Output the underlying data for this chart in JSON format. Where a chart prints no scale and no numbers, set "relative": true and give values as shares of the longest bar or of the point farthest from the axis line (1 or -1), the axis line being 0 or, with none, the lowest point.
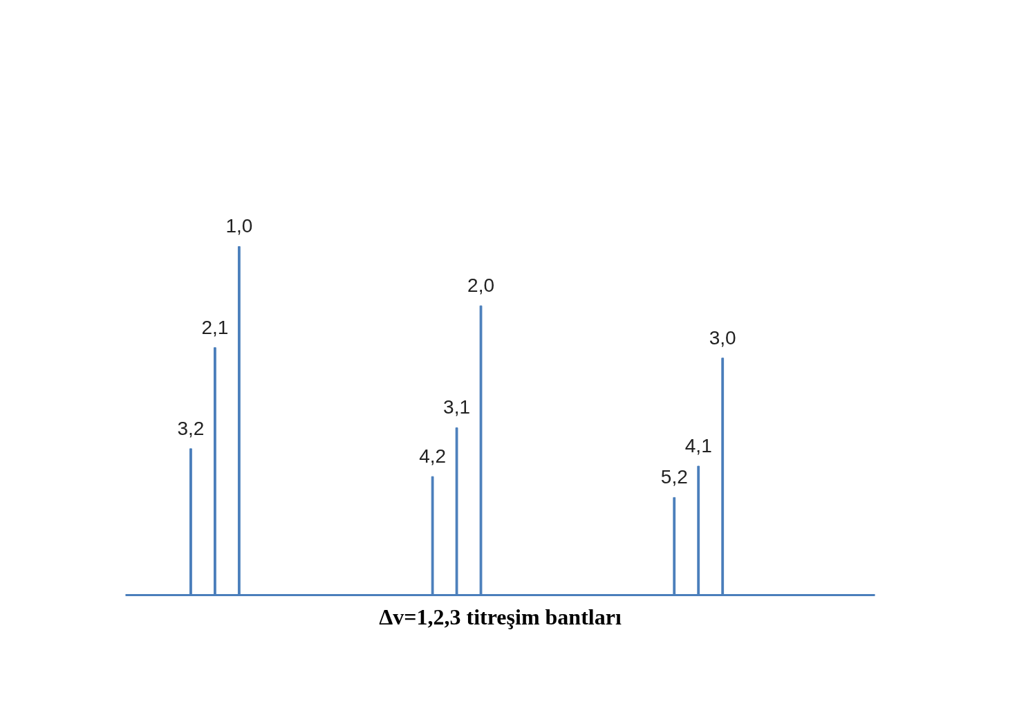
{
  "chart_data": {
    "type": "bar",
    "relative": true,
    "title": "Δv=1,2,3 titreşim bantları",
    "categories": [
      null,
      null,
      null
    ],
    "series": [
      {
        "color": "#4a7ebb",
        "values": [
          0.42,
          0.34,
          0.28
        ]
      },
      {
        "color": "#4a7ebb",
        "values": [
          0.71,
          0.48,
          0.37
        ]
      },
      {
        "color": "#4a7ebb",
        "values": [
          1,
          0.83,
          0.68
        ]
      }
    ],
    "annotations": [
      "3,2",
      "2,1",
      "1,0",
      "4,2",
      "3,1",
      "2,0",
      "5,2",
      "4,1",
      "3,0"
    ],
    "grid": false
  }
}
